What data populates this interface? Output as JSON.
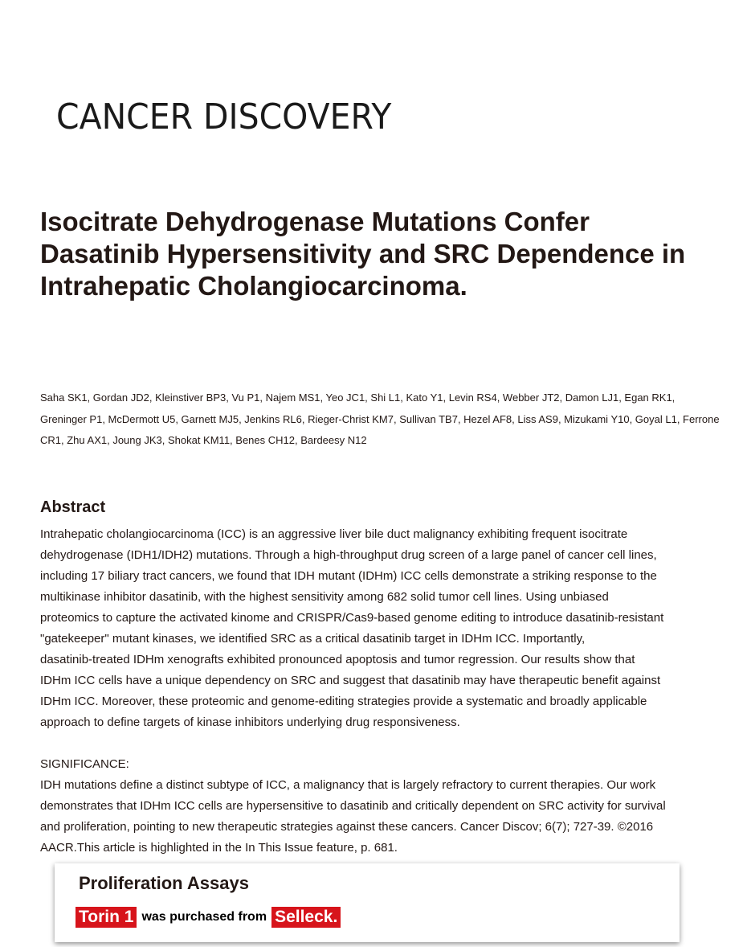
{
  "journal": {
    "name": "CANCER DISCOVERY"
  },
  "article": {
    "title": "Isocitrate Dehydrogenase Mutations Confer Dasatinib Hypersensitivity and SRC Dependence in Intrahepatic Cholangiocarcinoma.",
    "authors": "Saha SK1, Gordan JD2, Kleinstiver BP3, Vu P1, Najem MS1, Yeo JC1, Shi L1, Kato Y1, Levin RS4, Webber JT2, Damon LJ1, Egan RK1, Greninger P1, McDermott U5, Garnett MJ5, Jenkins RL6, Rieger-Christ KM7, Sullivan TB7, Hezel AF8, Liss AS9, Mizukami Y10, Goyal L1, Ferrone CR1, Zhu AX1, Joung JK3, Shokat KM11, Benes CH12, Bardeesy N12",
    "abstract_heading": "Abstract",
    "abstract_lines": [
      "Intrahepatic cholangiocarcinoma (ICC) is an aggressive liver bile duct malignancy exhibiting frequent isocitrate",
      "dehydrogenase (IDH1/IDH2) mutations. Through a high-throughput drug screen of a large panel of cancer cell lines,",
      "including 17 biliary tract cancers, we found that IDH mutant (IDHm) ICC cells demonstrate a striking response to the",
      "multikinase inhibitor dasatinib, with the highest sensitivity among 682 solid tumor cell lines. Using unbiased",
      "proteomics to capture the activated kinome and CRISPR/Cas9-based genome editing to introduce dasatinib-resistant",
      "\"gatekeeper\" mutant kinases, we identified SRC as a critical dasatinib target in IDHm ICC. Importantly,",
      "dasatinib-treated IDHm xenografts exhibited pronounced apoptosis and tumor regression. Our results show that",
      "IDHm ICC cells have a unique dependency on SRC and suggest that dasatinib may have therapeutic benefit against",
      "IDHm ICC. Moreover, these proteomic and genome-editing strategies provide a systematic and broadly applicable",
      "approach to define targets of kinase inhibitors underlying drug responsiveness."
    ],
    "significance_heading": "SIGNIFICANCE:",
    "significance_lines": [
      "IDH mutations define a distinct subtype of ICC, a malignancy that is largely refractory to current therapies. Our work",
      "demonstrates that IDHm ICC cells are hypersensitive to dasatinib and critically dependent on SRC activity for survival",
      "and proliferation, pointing to new therapeutic strategies against these cancers. Cancer Discov; 6(7); 727-39. ©2016",
      "AACR.This article is highlighted in the In This Issue feature, p. 681."
    ]
  },
  "overlay": {
    "title": "Proliferation Assays",
    "product": "Torin 1",
    "text": "was purchased from",
    "vendor": "Selleck.",
    "accent_color": "#d7141b"
  }
}
